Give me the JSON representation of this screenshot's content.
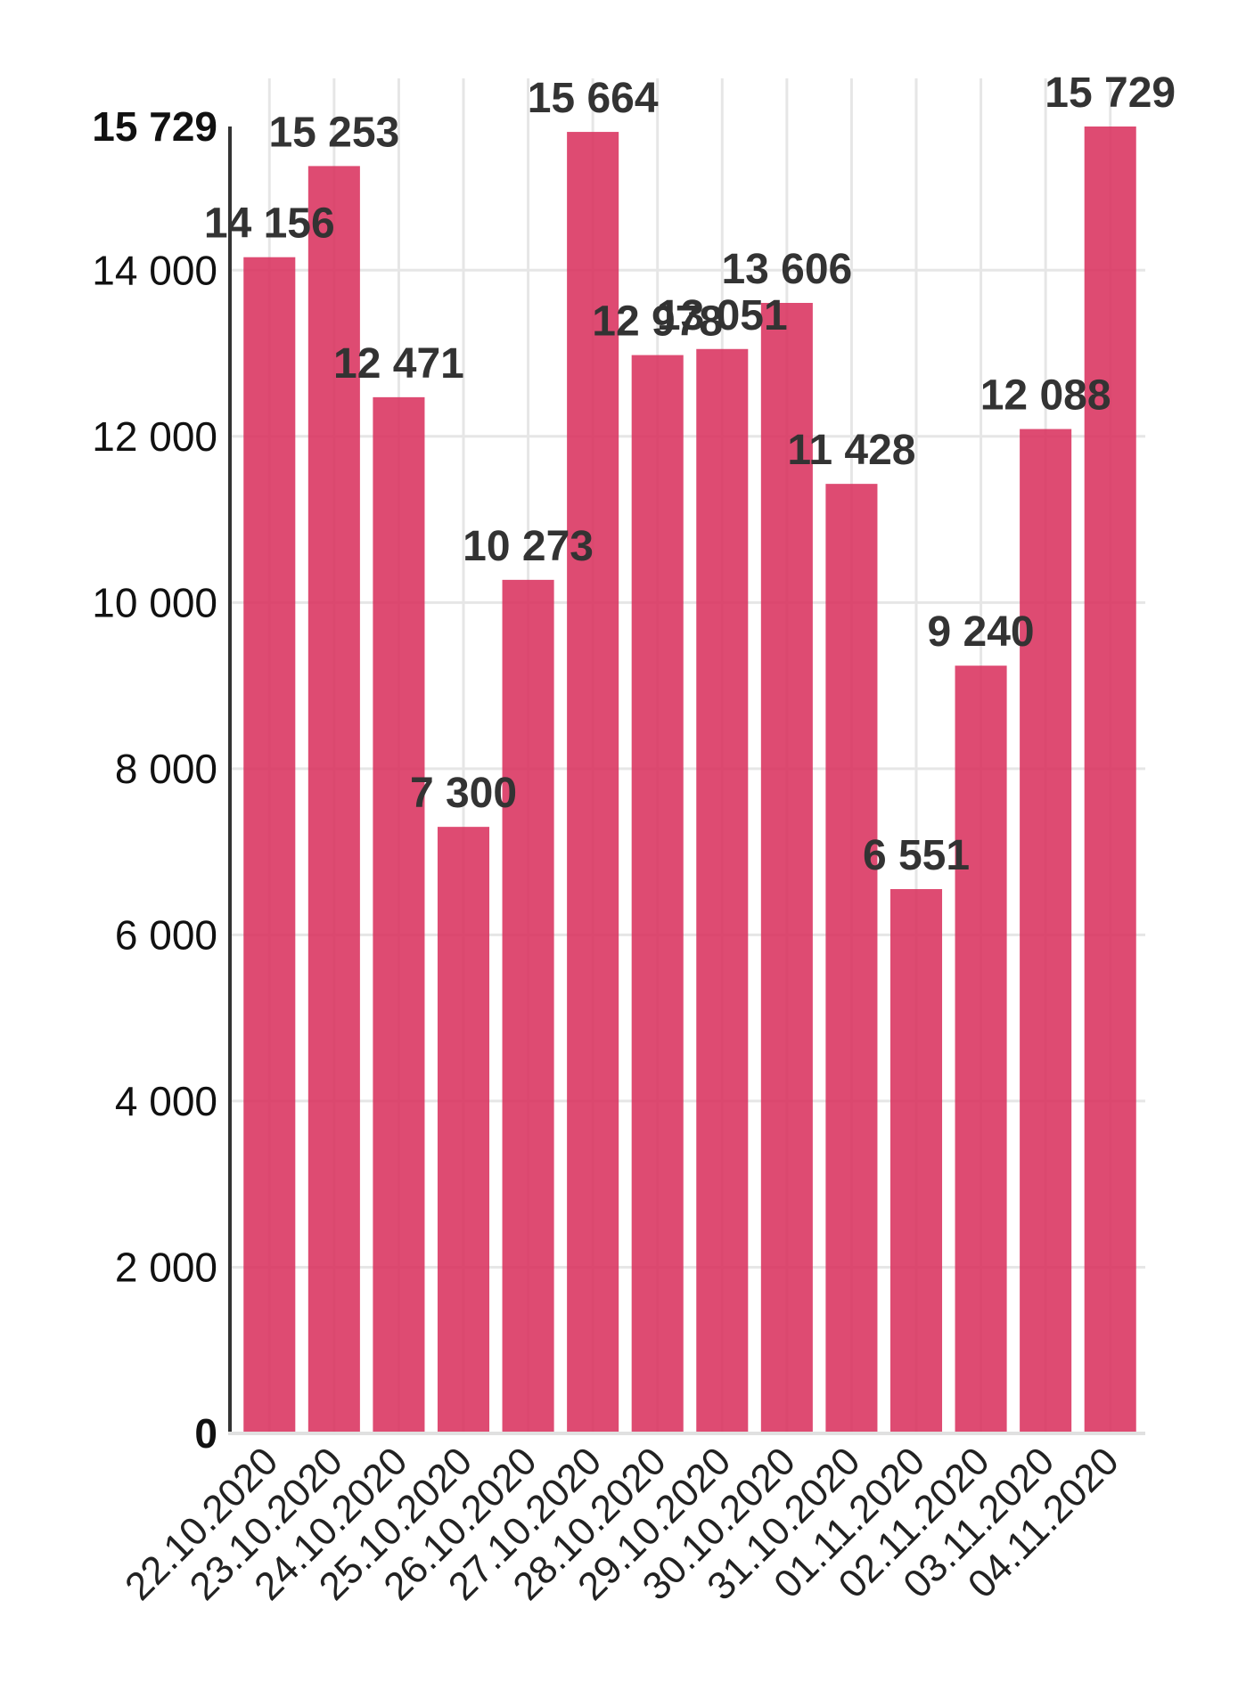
{
  "chart_data": {
    "type": "bar",
    "title": "",
    "xlabel": "",
    "ylabel": "",
    "categories": [
      "22.10.2020",
      "23.10.2020",
      "24.10.2020",
      "25.10.2020",
      "26.10.2020",
      "27.10.2020",
      "28.10.2020",
      "29.10.2020",
      "30.10.2020",
      "31.10.2020",
      "01.11.2020",
      "02.11.2020",
      "03.11.2020",
      "04.11.2020"
    ],
    "values": [
      14156,
      15253,
      12471,
      7300,
      10273,
      15664,
      12978,
      13051,
      13606,
      11428,
      6551,
      9240,
      12088,
      15729
    ],
    "value_labels": [
      "14 156",
      "15 253",
      "12 471",
      "7 300",
      "10 273",
      "15 664",
      "12 978",
      "13 051",
      "13 606",
      "11 428",
      "6 551",
      "9 240",
      "12 088",
      "15 729"
    ],
    "ylim": [
      0,
      15729
    ],
    "y_ticks": [
      {
        "value": 0,
        "label": "0",
        "bold": true
      },
      {
        "value": 2000,
        "label": "2 000",
        "bold": false
      },
      {
        "value": 4000,
        "label": "4 000",
        "bold": false
      },
      {
        "value": 6000,
        "label": "6 000",
        "bold": false
      },
      {
        "value": 8000,
        "label": "8 000",
        "bold": false
      },
      {
        "value": 10000,
        "label": "10 000",
        "bold": false
      },
      {
        "value": 12000,
        "label": "12 000",
        "bold": false
      },
      {
        "value": 14000,
        "label": "14 000",
        "bold": false
      },
      {
        "value": 15729,
        "label": "15 729",
        "bold": true
      }
    ],
    "grid": true,
    "bar_color": "#d9325f"
  }
}
